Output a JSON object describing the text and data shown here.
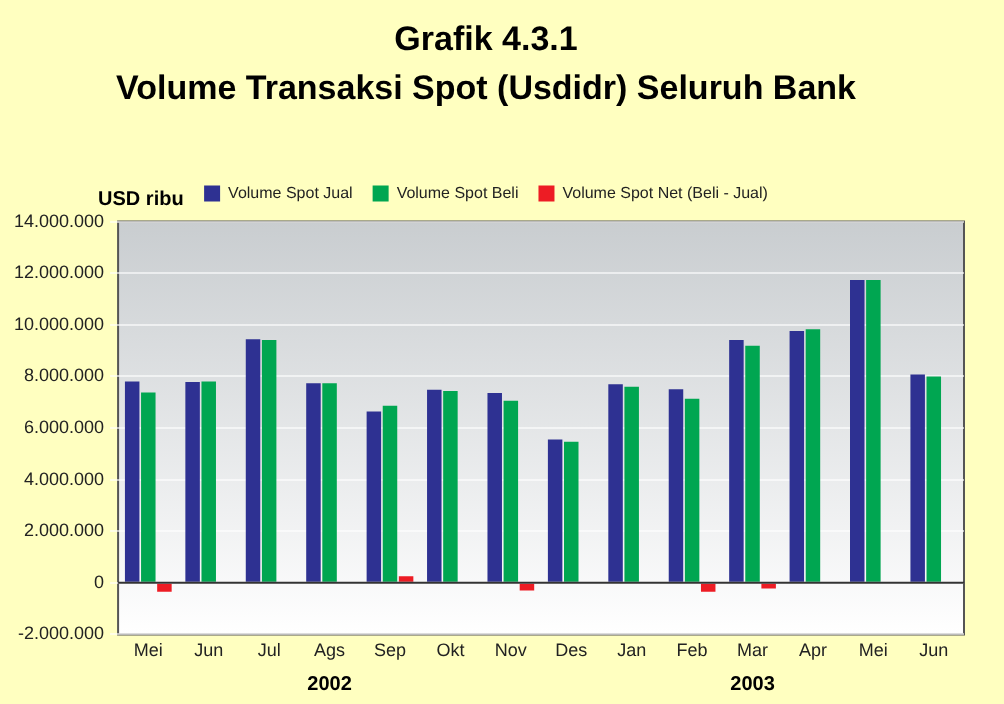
{
  "chart_data": {
    "type": "bar",
    "title": "Grafik 4.3.1",
    "subtitle": "Volume Transaksi Spot (Usdidr) Seluruh Bank",
    "ylabel": "USD ribu",
    "categories": [
      "Mei",
      "Jun",
      "Jul",
      "Ags",
      "Sep",
      "Okt",
      "Nov",
      "Des",
      "Jan",
      "Feb",
      "Mar",
      "Apr",
      "Mei",
      "Jun"
    ],
    "series": [
      {
        "name": "Volume Spot Jual",
        "color": "#2e3192",
        "values": [
          7800000,
          7780000,
          9440000,
          7730000,
          6640000,
          7480000,
          7360000,
          5550000,
          7700000,
          7500000,
          9410000,
          9760000,
          11740000,
          8070000
        ]
      },
      {
        "name": "Volume Spot Beli",
        "color": "#00a651",
        "values": [
          7380000,
          7800000,
          9410000,
          7730000,
          6860000,
          7430000,
          7060000,
          5470000,
          7600000,
          7130000,
          9190000,
          9830000,
          11740000,
          8000000
        ]
      },
      {
        "name": "Volume Spot Net (Beli - Jual)",
        "color": "#ed1c24",
        "values": [
          -350000,
          0,
          0,
          0,
          250000,
          0,
          -300000,
          0,
          0,
          -350000,
          -220000,
          0,
          0,
          0
        ]
      }
    ],
    "ylim": [
      -2000000,
      14000000
    ],
    "yticks": [
      {
        "value": -2000000,
        "label": "-2.000.000"
      },
      {
        "value": 0,
        "label": "0"
      },
      {
        "value": 2000000,
        "label": "2.000.000"
      },
      {
        "value": 4000000,
        "label": "4.000.000"
      },
      {
        "value": 6000000,
        "label": "6.000.000"
      },
      {
        "value": 8000000,
        "label": "8.000.000"
      },
      {
        "value": 10000000,
        "label": "10.000.000"
      },
      {
        "value": 12000000,
        "label": "12.000.000"
      },
      {
        "value": 14000000,
        "label": "14.000.000"
      }
    ],
    "annotations": [
      "2002",
      "2003"
    ],
    "legend": "top",
    "grid": "y"
  }
}
